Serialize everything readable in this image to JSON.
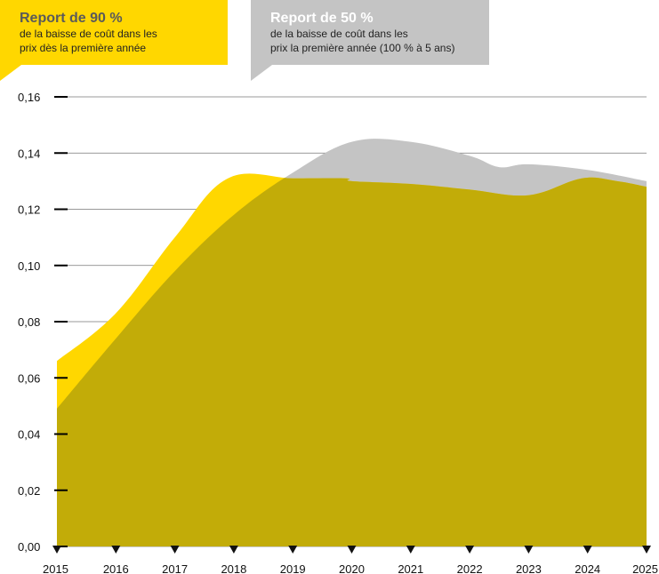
{
  "legend": {
    "series_a": {
      "title": "Report de 90 %",
      "desc_line1": "de la baisse de coût dans les",
      "desc_line2": "prix dès la première année",
      "color": "#FFD700"
    },
    "series_b": {
      "title": "Report de 50 %",
      "desc_line1": "de la baisse de coût dans les",
      "desc_line2": "prix la première année (100 % à 5 ans)",
      "color": "#C4C4C4"
    }
  },
  "chart_data": {
    "type": "area",
    "title": "",
    "xlabel": "",
    "ylabel": "",
    "x": [
      2015,
      2016,
      2017,
      2018,
      2019,
      2020,
      2021,
      2022,
      2023,
      2024,
      2025
    ],
    "xlim": [
      2015,
      2025
    ],
    "ylim": [
      0,
      0.16
    ],
    "y_ticks": [
      "0,00",
      "0,02",
      "0,04",
      "0,06",
      "0,08",
      "0,10",
      "0,12",
      "0,14",
      "0,16"
    ],
    "y_tick_values": [
      0,
      0.02,
      0.04,
      0.06,
      0.08,
      0.1,
      0.12,
      0.14,
      0.16
    ],
    "x_ticks": [
      "2015",
      "2016",
      "2017",
      "2018",
      "2019",
      "2020",
      "2021",
      "2022",
      "2023",
      "2024",
      "2025"
    ],
    "grid": true,
    "overlap_color": "#C2AC08",
    "series": [
      {
        "legend_key": "series_a",
        "color": "#FFD700",
        "points": [
          [
            2015,
            0.066
          ],
          [
            2016,
            0.083
          ],
          [
            2017,
            0.11
          ],
          [
            2017.9,
            0.131
          ],
          [
            2019,
            0.131
          ],
          [
            2019.9,
            0.131
          ],
          [
            2020,
            0.13
          ],
          [
            2021,
            0.129
          ],
          [
            2022,
            0.127
          ],
          [
            2023,
            0.125
          ],
          [
            2023.9,
            0.131
          ],
          [
            2024.5,
            0.13
          ],
          [
            2025,
            0.128
          ]
        ]
      },
      {
        "legend_key": "series_b",
        "color": "#C4C4C4",
        "points": [
          [
            2015,
            0.049
          ],
          [
            2016,
            0.074
          ],
          [
            2017,
            0.098
          ],
          [
            2018,
            0.118
          ],
          [
            2019,
            0.133
          ],
          [
            2020,
            0.144
          ],
          [
            2021,
            0.144
          ],
          [
            2022,
            0.139
          ],
          [
            2022.5,
            0.135
          ],
          [
            2023,
            0.136
          ],
          [
            2024,
            0.134
          ],
          [
            2025,
            0.13
          ]
        ]
      }
    ]
  }
}
